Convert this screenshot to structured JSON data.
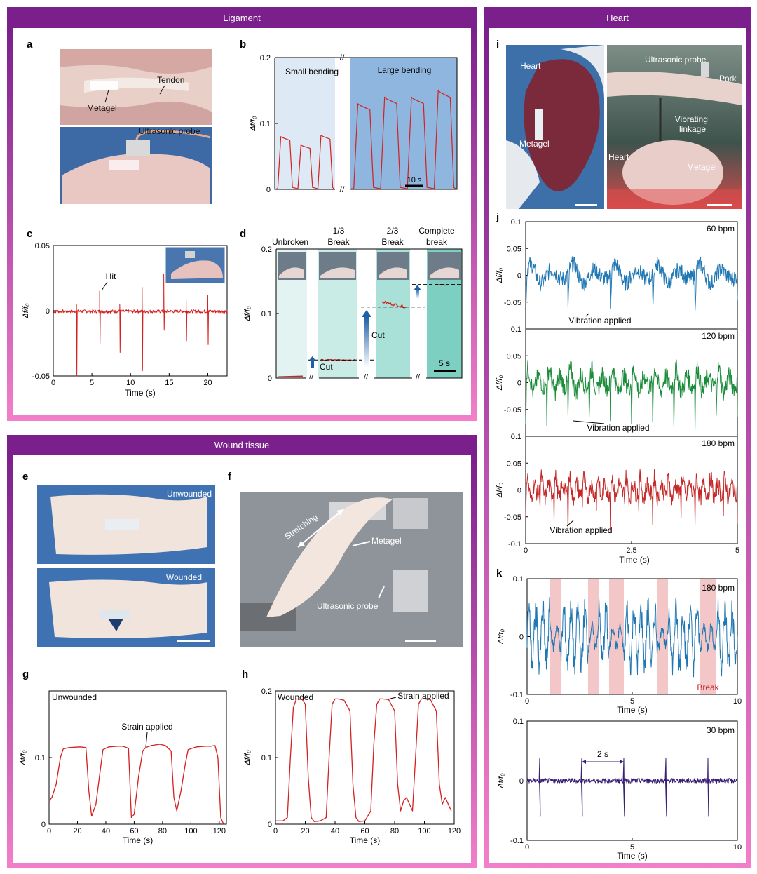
{
  "sections": {
    "ligament": "Ligament",
    "heart": "Heart",
    "wound": "Wound tissue"
  },
  "panels": [
    "a",
    "b",
    "c",
    "d",
    "e",
    "f",
    "g",
    "h",
    "i",
    "j",
    "k"
  ],
  "photo_labels": {
    "a": [
      "Metagel",
      "Tendon",
      "Ultrasonic probe"
    ],
    "e": [
      "Unwounded",
      "Wounded"
    ],
    "f": [
      "Stretching",
      "Metagel",
      "Ultrasonic probe"
    ],
    "i": [
      "Heart",
      "Metagel",
      "Ultrasonic probe",
      "Pork",
      "Vibrating\nlinkage",
      "Heart",
      "Metagel"
    ]
  },
  "colors": {
    "purple": "#7b1f8c",
    "pink": "#f27fc9",
    "red": "#d42020",
    "blue": "#1f77b4",
    "green": "#1a8c3a",
    "crimson": "#c62828",
    "indigo": "#3b1f73",
    "break_shade": "#f3c7c7",
    "bg_light_blue": "#dde9f5",
    "bg_blue": "#8fb6de",
    "teal_1": "#e2f3f1",
    "teal_2": "#c9ece7",
    "teal_3": "#a9e0d7",
    "teal_4": "#7ccfc1"
  },
  "chart_data": [
    {
      "panel": "b",
      "type": "line",
      "ylabel": "Δf/f₀",
      "yticks": [
        "0",
        "0.1",
        "0.2"
      ],
      "ylim": [
        0,
        0.2
      ],
      "regions": [
        "Small bending",
        "Large bending"
      ],
      "scale_bar": "10 s",
      "series": [
        {
          "region": "Small bending",
          "plateau_values": [
            0.08,
            0.067,
            0.082
          ],
          "baseline": 0.001
        },
        {
          "region": "Large bending",
          "plateau_values": [
            0.13,
            0.14,
            0.14,
            0.15
          ],
          "baseline": 0.001
        }
      ]
    },
    {
      "panel": "c",
      "type": "line",
      "xlabel": "Time (s)",
      "ylabel": "Δf/f₀",
      "xticks": [
        "0",
        "5",
        "10",
        "15",
        "20"
      ],
      "yticks": [
        "-0.05",
        "0",
        "0.05"
      ],
      "xlim": [
        0,
        22.5
      ],
      "ylim": [
        -0.05,
        0.05
      ],
      "annotation": "Hit",
      "spikes": [
        {
          "t": 3.0,
          "up": 0.005,
          "down": -0.05
        },
        {
          "t": 6.0,
          "up": 0.015,
          "down": -0.025
        },
        {
          "t": 8.6,
          "up": 0.005,
          "down": -0.032
        },
        {
          "t": 11.5,
          "up": 0.018,
          "down": -0.046
        },
        {
          "t": 14.3,
          "up": 0.028,
          "down": -0.015
        },
        {
          "t": 17.2,
          "up": 0.009,
          "down": -0.023
        },
        {
          "t": 20.0,
          "up": 0.012,
          "down": -0.026
        }
      ]
    },
    {
      "panel": "d",
      "type": "line",
      "ylabel": "Δf/f₀",
      "yticks": [
        "0",
        "0.1",
        "0.2"
      ],
      "ylim": [
        0,
        0.2
      ],
      "regions": [
        "Unbroken",
        "1/3\nBreak",
        "2/3\nBreak",
        "Complete\nbreak"
      ],
      "levels": [
        0.002,
        0.028,
        0.11,
        0.145
      ],
      "annotations": [
        "Cut",
        "Cut"
      ],
      "scale_bar": "5 s"
    },
    {
      "panel": "g",
      "type": "line",
      "title": "Unwounded",
      "xlabel": "Time (s)",
      "ylabel": "Δf/f₀",
      "xticks": [
        "0",
        "20",
        "40",
        "60",
        "80",
        "100",
        "120"
      ],
      "yticks": [
        "0",
        "0.1"
      ],
      "xlim": [
        0,
        125
      ],
      "ylim": [
        0,
        0.2
      ],
      "annotation": "Strain applied",
      "x": [
        0,
        2,
        5,
        8,
        10,
        14,
        22,
        26,
        28,
        30,
        33,
        36,
        38,
        42,
        48,
        52,
        56,
        58,
        60,
        63,
        66,
        68,
        72,
        78,
        82,
        86,
        88,
        90,
        93,
        96,
        98,
        104,
        110,
        114,
        117,
        119,
        121,
        123
      ],
      "y": [
        0.035,
        0.04,
        0.06,
        0.1,
        0.113,
        0.115,
        0.116,
        0.115,
        0.05,
        0.012,
        0.03,
        0.08,
        0.112,
        0.116,
        0.117,
        0.117,
        0.114,
        0.01,
        0.015,
        0.07,
        0.11,
        0.115,
        0.118,
        0.12,
        0.118,
        0.11,
        0.04,
        0.02,
        0.05,
        0.09,
        0.112,
        0.116,
        0.117,
        0.117,
        0.118,
        0.1,
        0.01,
        0.0
      ]
    },
    {
      "panel": "h",
      "type": "line",
      "title": "Wounded",
      "xlabel": "Time (s)",
      "ylabel": "Δf/f₀",
      "xticks": [
        "0",
        "20",
        "40",
        "60",
        "80",
        "100",
        "120"
      ],
      "yticks": [
        "0",
        "0.1",
        "0.2"
      ],
      "xlim": [
        0,
        120
      ],
      "ylim": [
        0,
        0.2
      ],
      "annotation": "Strain applied",
      "x": [
        0,
        5,
        8,
        10,
        12,
        14,
        18,
        20,
        22,
        24,
        26,
        30,
        34,
        36,
        38,
        40,
        42,
        46,
        50,
        52,
        54,
        56,
        60,
        64,
        66,
        68,
        70,
        72,
        76,
        80,
        82,
        84,
        86,
        88,
        92,
        94,
        96,
        98,
        100,
        104,
        108,
        110,
        112,
        114,
        116,
        118
      ],
      "y": [
        0.005,
        0.005,
        0.01,
        0.1,
        0.175,
        0.188,
        0.187,
        0.18,
        0.07,
        0.01,
        0.004,
        0.005,
        0.01,
        0.1,
        0.18,
        0.188,
        0.188,
        0.186,
        0.17,
        0.06,
        0.01,
        0.004,
        0.005,
        0.02,
        0.12,
        0.18,
        0.188,
        0.188,
        0.187,
        0.17,
        0.06,
        0.02,
        0.035,
        0.04,
        0.02,
        0.1,
        0.18,
        0.188,
        0.188,
        0.187,
        0.17,
        0.06,
        0.03,
        0.04,
        0.03,
        0.02
      ]
    },
    {
      "panel": "j",
      "type": "line",
      "xlabel": "Time (s)",
      "ylabel": "Δf/f₀",
      "xticks": [
        "0",
        "2.5",
        "5"
      ],
      "yticks": [
        "-0.1",
        "-0.05",
        "0",
        "0.05",
        "0.1"
      ],
      "xlim": [
        0,
        5
      ],
      "ylim": [
        -0.1,
        0.1
      ],
      "annotation": "Vibration applied",
      "series": [
        {
          "name": "60 bpm",
          "bpm": 60,
          "amplitude": 0.05
        },
        {
          "name": "120 bpm",
          "bpm": 120,
          "amplitude": 0.06
        },
        {
          "name": "180 bpm",
          "bpm": 180,
          "amplitude": 0.055
        }
      ]
    },
    {
      "panel": "k",
      "type": "line",
      "xlabel": "Time (s)",
      "ylabel": "Δf/f₀",
      "xticks": [
        "0",
        "5",
        "10"
      ],
      "yticks": [
        "-0.1",
        "0",
        "0.1"
      ],
      "xlim": [
        0,
        10
      ],
      "ylim": [
        -0.1,
        0.1
      ],
      "series": [
        {
          "name": "180 bpm",
          "bpm": 180,
          "break_windows": [
            [
              1.1,
              1.6
            ],
            [
              2.9,
              3.4
            ],
            [
              3.9,
              4.6
            ],
            [
              6.2,
              6.7
            ],
            [
              8.2,
              9.0
            ]
          ],
          "annotation": "Break"
        },
        {
          "name": "30 bpm",
          "bpm": 30,
          "spike_times": [
            0.6,
            2.6,
            4.6,
            6.6,
            8.6
          ],
          "annotation": "2 s"
        }
      ]
    }
  ]
}
